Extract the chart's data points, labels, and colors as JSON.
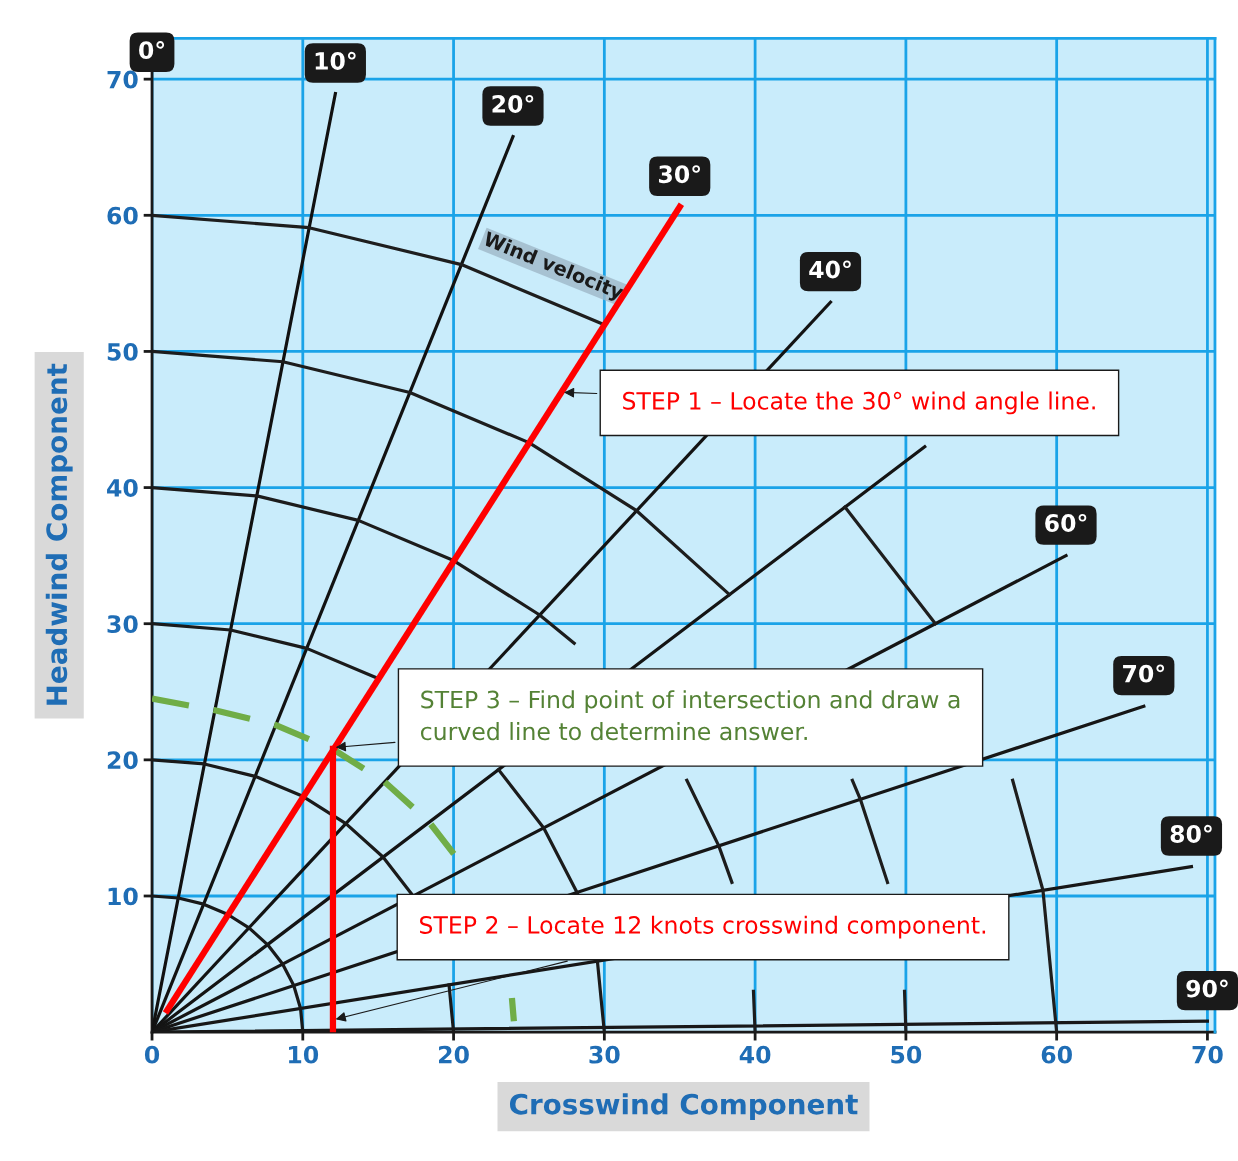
{
  "chart_data": {
    "type": "line",
    "xlabel": "Crosswind Component",
    "ylabel": "Headwind Component",
    "xlim": [
      0,
      70.5
    ],
    "ylim": [
      0,
      73
    ],
    "xticks": [
      0,
      10,
      20,
      30,
      40,
      50,
      60,
      70
    ],
    "yticks": [
      10,
      20,
      30,
      40,
      50,
      60,
      70
    ],
    "grid": true,
    "marker": "none",
    "series": [
      {
        "color": "#111111",
        "x": [
          0,
          12.16
        ],
        "values": [
          0,
          68.94
        ]
      },
      {
        "color": "#121212",
        "x": [
          0,
          23.94
        ],
        "values": [
          0,
          65.78
        ]
      },
      {
        "color": "#131313",
        "x": [
          0,
          45
        ],
        "values": [
          0,
          53.62
        ]
      },
      {
        "color": "#141414",
        "x": [
          0,
          51.25
        ],
        "values": [
          0,
          43
        ]
      },
      {
        "color": "#151515",
        "x": [
          0,
          60.62
        ],
        "values": [
          0,
          35
        ]
      },
      {
        "color": "#161616",
        "x": [
          0,
          65.78
        ],
        "values": [
          0,
          23.94
        ]
      },
      {
        "color": "#171717",
        "x": [
          0,
          68.94
        ],
        "values": [
          0,
          12.16
        ]
      },
      {
        "color": "#181818",
        "x": [
          0,
          70
        ],
        "values": [
          0,
          0.8
        ]
      },
      {
        "color": "#191919",
        "x": [
          0,
          1.74,
          3.42,
          5,
          6.43,
          7.66,
          8.66,
          9.4,
          9.85,
          10
        ],
        "values": [
          10,
          9.85,
          9.4,
          8.66,
          7.66,
          6.43,
          5,
          3.42,
          1.74,
          0
        ]
      },
      {
        "color": "#1a1a1a",
        "x": [
          0,
          3.47,
          6.84,
          10,
          12.86,
          15.32,
          17.32,
          18.79,
          19.7,
          20
        ],
        "values": [
          20,
          19.7,
          18.79,
          17.32,
          15.32,
          12.86,
          10,
          null,
          3.47,
          0
        ]
      },
      {
        "color": "#1b1b1b",
        "x": [
          0,
          5.21,
          10.26,
          15,
          19.28,
          22.98,
          25.98,
          28.19,
          29.54,
          30
        ],
        "values": [
          30,
          29.54,
          28.19,
          25.98,
          null,
          19.28,
          15,
          10.26,
          5.21,
          0
        ]
      },
      {
        "color": "#1c1c1c",
        "x": [
          0,
          6.95,
          13.68,
          20,
          25.71,
          28,
          30.64,
          35.47,
          37.59,
          38.46,
          39.39,
          39.89,
          40
        ],
        "values": [
          40,
          39.39,
          37.59,
          34.64,
          30.64,
          28.57,
          null,
          18.5,
          13.68,
          11,
          null,
          3,
          0
        ]
      },
      {
        "color": "#1d1d1d",
        "x": [
          0,
          8.68,
          17.1,
          25,
          32.14,
          38.3,
          43.3,
          46.45,
          46.98,
          48.78,
          49.24,
          49.91,
          50
        ],
        "values": [
          50,
          49.24,
          46.98,
          43.3,
          38.3,
          32.14,
          null,
          18.5,
          17.1,
          11,
          null,
          3,
          0
        ]
      },
      {
        "color": "#1e1e1e",
        "x": [
          0,
          10.42,
          20.52,
          30,
          38.57,
          45.96,
          51.96,
          56.38,
          57.08,
          59.09,
          60
        ],
        "values": [
          60,
          59.09,
          56.38,
          51.96,
          null,
          38.57,
          30,
          null,
          18.5,
          10.42,
          0
        ]
      },
      {
        "color": "#70ad47",
        "line_style": "dashed",
        "x": [
          0,
          4.17,
          8.21,
          12,
          15.43,
          18.38,
          20.78,
          22.55,
          23.64,
          23.87,
          24
        ],
        "values": [
          24.5,
          23.64,
          22.55,
          20.78,
          18.38,
          15.43,
          12,
          null,
          null,
          2.5,
          0.8
        ]
      },
      {
        "color": "#ff0000",
        "x": [
          1,
          35
        ],
        "values": [
          1.6,
          60.62
        ]
      },
      {
        "color": "#fe0000",
        "x": [
          12,
          12
        ],
        "values": [
          0,
          20.8
        ]
      }
    ],
    "annotations": [
      "0°",
      {
        "text": "10°",
        "x": 12.16,
        "y": 68.94
      },
      {
        "text": "20°",
        "x": 23.94,
        "y": 65.78
      },
      {
        "text": "30°",
        "x": 35,
        "y": 60.62
      },
      {
        "text": "40°",
        "x": 45,
        "y": 53.62
      },
      {
        "text": "60°",
        "x": 60.62,
        "y": 35
      },
      {
        "text": "70°",
        "x": 65.78,
        "y": 23.94
      },
      {
        "text": "80°",
        "x": 68.94,
        "y": 12.16
      },
      {
        "text": "90°",
        "x": 70,
        "y": 0.8
      },
      "Wind velocity",
      {
        "text": "STEP 1 – Locate the 30° wind angle line.",
        "x": 27.14,
        "y": 47
      },
      {
        "text": "STEP 3 – Find point of intersection and draw a\ncurved line to determine answer.",
        "x": 12,
        "y": 20.9
      },
      {
        "text": "STEP 2 – Locate 12 knots crosswind component.",
        "x": 12,
        "y": 0.9
      }
    ]
  }
}
